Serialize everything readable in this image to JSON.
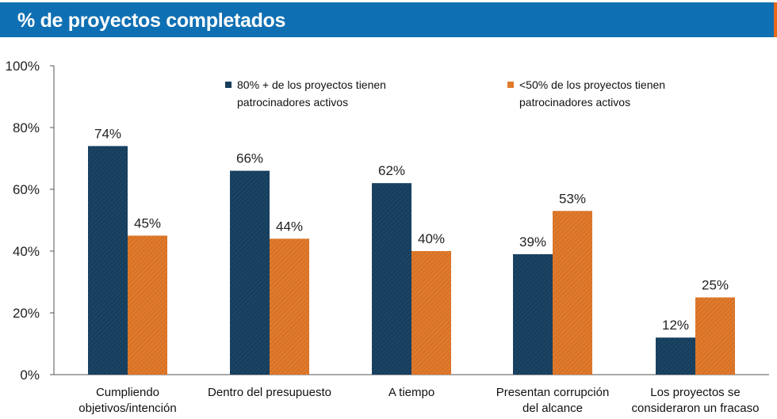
{
  "header": {
    "title": "% de proyectos completados"
  },
  "colors": {
    "header_bg": "#0f6fb3",
    "series_1": "#173d5c",
    "series_2": "#e07a2c",
    "axis": "#555555"
  },
  "chart_data": {
    "type": "bar",
    "title": "% de proyectos completados",
    "xlabel": "",
    "ylabel": "",
    "ylim": [
      0,
      100
    ],
    "yticks": [
      "0%",
      "20%",
      "40%",
      "60%",
      "80%",
      "100%"
    ],
    "grid": false,
    "legend_position": "top",
    "categories": [
      [
        "Cumpliendo",
        "objetivos/intención"
      ],
      [
        "Dentro del presupuesto"
      ],
      [
        "A tiempo"
      ],
      [
        "Presentan corrupción",
        "del alcance"
      ],
      [
        "Los proyectos se",
        "consideraron un fracaso"
      ]
    ],
    "series": [
      {
        "name": [
          "80% + de los proyectos tienen",
          "patrocinadores activos"
        ],
        "color": "#173d5c",
        "values": [
          74,
          66,
          62,
          39,
          12
        ],
        "labels": [
          "74%",
          "66%",
          "62%",
          "39%",
          "12%"
        ]
      },
      {
        "name": [
          "<50% de los proyectos tienen",
          "patrocinadores activos"
        ],
        "color": "#e07a2c",
        "values": [
          45,
          44,
          40,
          53,
          25
        ],
        "labels": [
          "45%",
          "44%",
          "40%",
          "53%",
          "25%"
        ]
      }
    ]
  }
}
